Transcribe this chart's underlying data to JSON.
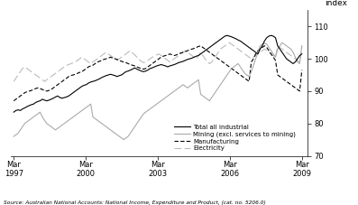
{
  "ylabel": "index",
  "ylim": [
    70,
    115
  ],
  "yticks": [
    70,
    80,
    90,
    100,
    110
  ],
  "xtick_positions": [
    0,
    12,
    24,
    36,
    48
  ],
  "xtick_labels": [
    "Mar\n1997",
    "Mar\n2000",
    "Mar\n2003",
    "Mar\n2006",
    "Mar\n2009"
  ],
  "source_text": "Source: Australian National Accounts: National Income, Expenditure and Product, (cat. no. 5206.0)",
  "legend_labels": [
    "Total all industrial",
    "Mining (excl. services to mining)",
    "Manufacturing",
    "Electricity"
  ],
  "total": [
    83.5,
    84.0,
    84.2,
    84.0,
    84.5,
    84.8,
    85.2,
    85.5,
    85.8,
    86.0,
    86.5,
    86.8,
    87.0,
    87.5,
    87.2,
    87.0,
    87.2,
    87.5,
    87.8,
    88.2,
    88.5,
    88.0,
    87.8,
    88.0,
    88.2,
    88.5,
    89.0,
    89.5,
    90.0,
    90.5,
    91.0,
    91.5,
    91.8,
    92.0,
    92.5,
    92.8,
    93.0,
    93.2,
    93.5,
    93.8,
    94.2,
    94.5,
    94.8,
    95.0,
    95.2,
    95.0,
    94.8,
    94.5,
    94.8,
    95.0,
    95.5,
    96.0,
    96.2,
    96.5,
    96.8,
    97.2,
    96.8,
    96.5,
    96.2,
    96.0,
    96.2,
    96.5,
    97.0,
    97.2,
    97.5,
    97.8,
    98.0,
    98.2,
    98.0,
    97.8,
    97.5,
    97.8,
    98.0,
    98.2,
    98.5,
    98.8,
    99.0,
    99.2,
    99.5,
    99.8,
    100.0,
    100.2,
    100.5,
    100.8,
    101.0,
    101.5,
    102.0,
    102.5,
    103.0,
    103.5,
    104.0,
    104.5,
    105.0,
    105.5,
    106.0,
    106.5,
    107.0,
    107.2,
    107.0,
    106.8,
    106.5,
    106.2,
    105.8,
    105.5,
    105.0,
    104.5,
    104.0,
    103.5,
    103.0,
    102.5,
    102.0,
    101.5,
    103.0,
    104.0,
    105.5,
    106.5,
    107.0,
    107.2,
    107.0,
    106.5,
    104.0,
    103.0,
    102.0,
    101.0,
    100.0,
    99.5,
    99.0,
    98.5,
    99.0,
    100.0,
    101.0,
    101.5
  ],
  "mining": [
    76.0,
    76.5,
    77.0,
    78.0,
    79.0,
    80.0,
    80.5,
    81.0,
    81.5,
    82.0,
    82.5,
    83.0,
    83.5,
    82.0,
    81.0,
    80.0,
    79.5,
    79.0,
    78.5,
    78.0,
    78.5,
    79.0,
    79.5,
    80.0,
    80.5,
    81.0,
    81.5,
    82.0,
    82.5,
    83.0,
    83.5,
    84.0,
    84.5,
    85.0,
    85.5,
    86.0,
    82.0,
    81.5,
    81.0,
    80.5,
    80.0,
    79.5,
    79.0,
    78.5,
    78.0,
    77.5,
    77.0,
    76.5,
    76.0,
    75.5,
    75.0,
    75.5,
    76.0,
    77.0,
    78.0,
    79.0,
    80.0,
    81.0,
    82.0,
    83.0,
    83.5,
    84.0,
    84.5,
    85.0,
    85.5,
    86.0,
    86.5,
    87.0,
    87.5,
    88.0,
    88.5,
    89.0,
    89.5,
    90.0,
    90.5,
    91.0,
    91.5,
    92.0,
    91.5,
    91.0,
    91.5,
    92.0,
    92.5,
    93.0,
    93.5,
    89.0,
    88.5,
    88.0,
    87.5,
    87.0,
    88.0,
    89.0,
    90.0,
    91.0,
    92.0,
    93.0,
    94.0,
    95.0,
    96.0,
    97.0,
    97.5,
    98.0,
    98.5,
    97.5,
    96.5,
    95.5,
    95.0,
    94.5,
    96.0,
    98.0,
    100.0,
    102.0,
    104.0,
    104.5,
    104.8,
    104.5,
    103.5,
    102.5,
    101.5,
    100.5,
    103.0,
    104.0,
    105.0,
    104.5,
    104.0,
    103.5,
    103.0,
    102.0,
    100.5,
    99.0,
    98.5,
    104.0
  ],
  "manufacturing": [
    87.0,
    87.5,
    88.0,
    88.5,
    89.0,
    89.5,
    89.8,
    90.0,
    90.2,
    90.5,
    90.8,
    91.0,
    90.8,
    90.5,
    90.2,
    90.0,
    90.2,
    90.5,
    91.0,
    91.5,
    92.0,
    92.5,
    93.0,
    93.5,
    94.0,
    94.5,
    94.8,
    95.0,
    95.2,
    95.5,
    95.8,
    96.0,
    96.5,
    97.0,
    97.5,
    97.8,
    98.0,
    98.5,
    99.0,
    99.2,
    99.5,
    99.8,
    100.0,
    100.2,
    100.5,
    100.2,
    100.0,
    99.8,
    99.5,
    99.2,
    99.0,
    98.8,
    98.5,
    98.2,
    98.0,
    97.8,
    97.5,
    97.2,
    97.0,
    96.8,
    97.0,
    97.5,
    98.0,
    98.5,
    99.0,
    99.5,
    100.0,
    100.5,
    100.8,
    101.0,
    101.2,
    101.5,
    101.2,
    101.0,
    101.2,
    101.5,
    101.8,
    102.0,
    102.2,
    102.5,
    102.8,
    103.0,
    103.2,
    103.5,
    103.8,
    104.0,
    103.5,
    103.0,
    102.5,
    102.0,
    101.5,
    101.0,
    100.5,
    100.0,
    99.5,
    99.0,
    98.5,
    98.0,
    97.5,
    97.0,
    96.5,
    96.0,
    95.5,
    95.0,
    94.5,
    94.0,
    93.5,
    93.0,
    99.0,
    100.0,
    101.5,
    102.5,
    103.0,
    103.5,
    104.0,
    103.5,
    102.5,
    101.5,
    100.5,
    99.5,
    95.0,
    94.5,
    94.0,
    93.5,
    93.0,
    92.5,
    92.0,
    91.5,
    91.0,
    90.5,
    90.0,
    96.5
  ],
  "electricity": [
    93.0,
    94.0,
    95.0,
    96.0,
    97.0,
    97.5,
    97.0,
    96.5,
    96.0,
    95.5,
    95.0,
    94.5,
    94.0,
    93.5,
    93.0,
    93.5,
    94.0,
    94.5,
    95.0,
    95.5,
    96.0,
    96.5,
    97.0,
    97.5,
    98.0,
    98.2,
    98.5,
    98.8,
    99.0,
    99.5,
    100.0,
    100.5,
    100.0,
    99.5,
    99.0,
    98.5,
    99.0,
    99.5,
    100.0,
    100.5,
    101.0,
    101.5,
    102.0,
    101.5,
    101.0,
    100.5,
    100.0,
    99.5,
    100.0,
    100.5,
    101.0,
    101.5,
    102.0,
    102.5,
    101.8,
    101.2,
    100.5,
    99.8,
    99.2,
    98.8,
    99.0,
    99.5,
    100.0,
    100.5,
    100.8,
    101.2,
    101.5,
    101.0,
    100.5,
    100.0,
    99.5,
    99.0,
    99.5,
    100.0,
    100.5,
    101.0,
    101.5,
    102.0,
    102.5,
    102.0,
    101.5,
    101.0,
    100.5,
    100.0,
    101.0,
    102.0,
    101.0,
    100.0,
    99.0,
    98.5,
    99.0,
    100.0,
    101.0,
    102.0,
    103.0,
    103.5,
    104.0,
    104.5,
    105.0,
    104.5,
    104.0,
    103.5,
    103.0,
    102.5,
    102.0,
    101.5,
    101.0,
    100.5,
    100.0,
    100.5,
    101.0,
    101.5,
    102.0,
    102.5,
    103.0,
    102.5,
    102.0,
    101.5,
    101.0,
    100.5,
    104.0,
    103.5,
    103.0,
    102.5,
    102.0,
    101.5,
    101.0,
    100.5,
    100.0,
    99.5,
    99.0,
    104.0
  ]
}
